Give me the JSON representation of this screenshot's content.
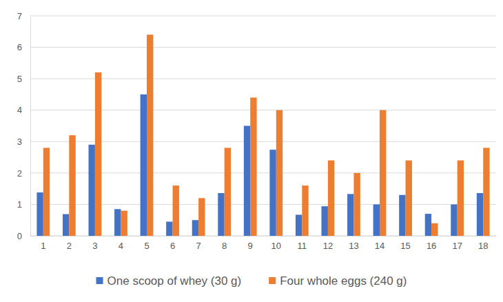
{
  "chart_data": {
    "type": "bar",
    "categories": [
      "1",
      "2",
      "3",
      "4",
      "5",
      "6",
      "7",
      "8",
      "9",
      "10",
      "11",
      "12",
      "13",
      "14",
      "15",
      "16",
      "17",
      "18"
    ],
    "series": [
      {
        "name": "One scoop of whey (30 g)",
        "color": "#4472c4",
        "values": [
          1.38,
          0.69,
          2.9,
          0.85,
          4.5,
          0.45,
          0.5,
          1.36,
          3.5,
          2.74,
          0.67,
          0.94,
          1.33,
          1.0,
          1.3,
          0.7,
          1.0,
          1.36
        ]
      },
      {
        "name": "Four whole eggs (240 g)",
        "color": "#ed7d31",
        "values": [
          2.8,
          3.2,
          5.2,
          0.8,
          6.4,
          1.6,
          1.2,
          2.8,
          4.4,
          4.0,
          1.6,
          2.4,
          2.0,
          4.0,
          2.4,
          0.4,
          2.4,
          2.8
        ]
      }
    ],
    "ylim": [
      0,
      7
    ],
    "yticks": [
      0,
      1,
      2,
      3,
      4,
      5,
      6,
      7
    ],
    "grid": true,
    "legend": "bottom"
  }
}
